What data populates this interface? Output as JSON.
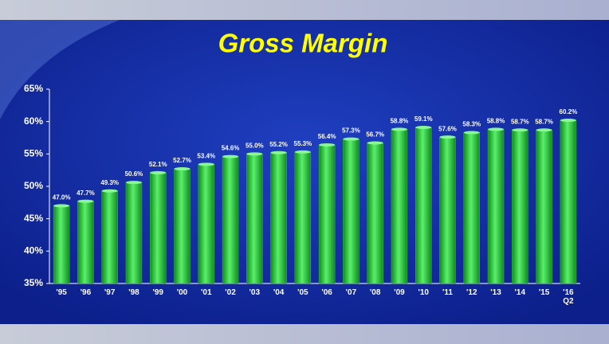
{
  "chart_data": {
    "type": "bar",
    "title": "Gross Margin",
    "categories": [
      "'95",
      "'96",
      "'97",
      "'98",
      "'99",
      "'00",
      "'01",
      "'02",
      "'03",
      "'04",
      "'05",
      "'06",
      "'07",
      "'08",
      "'09",
      "'10",
      "'11",
      "'12",
      "'13",
      "'14",
      "'15",
      "'16\nQ2"
    ],
    "values": [
      47.0,
      47.7,
      49.3,
      50.6,
      52.1,
      52.7,
      53.4,
      54.6,
      55.0,
      55.2,
      55.3,
      56.4,
      57.3,
      56.7,
      58.8,
      59.1,
      57.6,
      58.3,
      58.8,
      58.7,
      58.7,
      60.2
    ],
    "value_labels": [
      "47.0%",
      "47.7%",
      "49.3%",
      "50.6%",
      "52.1%",
      "52.7%",
      "53.4%",
      "54.6%",
      "55.0%",
      "55.2%",
      "55.3%",
      "56.4%",
      "57.3%",
      "56.7%",
      "58.8%",
      "59.1%",
      "57.6%",
      "58.3%",
      "58.8%",
      "58.7%",
      "58.7%",
      "60.2%"
    ],
    "color": "#2ecc40",
    "ylim": [
      35,
      65
    ],
    "yticks": [
      {
        "value": 35,
        "label": "35%"
      },
      {
        "value": 40,
        "label": "40%"
      },
      {
        "value": 45,
        "label": "45%"
      },
      {
        "value": 50,
        "label": "50%"
      },
      {
        "value": 55,
        "label": "55%"
      },
      {
        "value": 60,
        "label": "60%"
      },
      {
        "value": 65,
        "label": "65%"
      }
    ],
    "grid": false
  }
}
